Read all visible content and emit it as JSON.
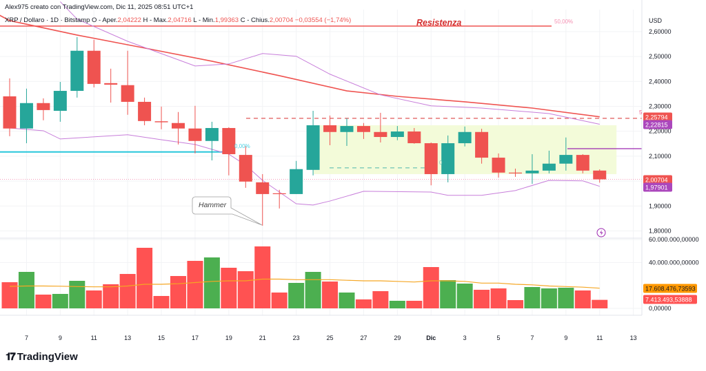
{
  "header": {
    "author_line": "Alex975 creato con TradingView.com, Dic 11, 2025 08:51 UTC+1",
    "symbol": "XRP / Dollaro · 1D · Bitstamp",
    "open_label": "O - Aper.",
    "open": "2,04222",
    "high_label": "H - Max.",
    "high": "2,04716",
    "low_label": "L - Min.",
    "low": "1,99363",
    "close_label": "C - Chius.",
    "close": "2,00704",
    "change": "−0,03554 (−1,74%)"
  },
  "logo": {
    "text": "TradingView",
    "mark": "TV"
  },
  "colors": {
    "up": "#26a69a",
    "down": "#ef5350",
    "vol_up": "#4caf50",
    "vol_down": "#ff5252",
    "ma_red": "#ef5350",
    "bollinger": "#c77dda",
    "vol_ma": "#f5a623",
    "teal": "#26c6da",
    "zone": "#f3fbd9",
    "purple_line": "#9c27b0"
  },
  "chart_data": {
    "type": "candlestick",
    "title": "",
    "currency": "USD",
    "ylim": [
      1.771,
      2.688
    ],
    "y_ticks": [
      "2,60000",
      "2,50000",
      "2,40000",
      "2,30000",
      "2,20000",
      "2,10000",
      "1,90000",
      "1,80000"
    ],
    "y_tick_values": [
      2.6,
      2.5,
      2.4,
      2.3,
      2.2,
      2.1,
      1.9,
      1.8
    ],
    "x_ticks": [
      {
        "label": "7",
        "date": "2025-11-07"
      },
      {
        "label": "9",
        "date": "2025-11-09"
      },
      {
        "label": "11",
        "date": "2025-11-11"
      },
      {
        "label": "13",
        "date": "2025-11-13"
      },
      {
        "label": "15",
        "date": "2025-11-15"
      },
      {
        "label": "17",
        "date": "2025-11-17"
      },
      {
        "label": "19",
        "date": "2025-11-19"
      },
      {
        "label": "21",
        "date": "2025-11-21"
      },
      {
        "label": "23",
        "date": "2025-11-23"
      },
      {
        "label": "25",
        "date": "2025-11-25"
      },
      {
        "label": "27",
        "date": "2025-11-27"
      },
      {
        "label": "29",
        "date": "2025-11-29"
      },
      {
        "label": "Dic",
        "date": "2025-12-01"
      },
      {
        "label": "3",
        "date": "2025-12-03"
      },
      {
        "label": "5",
        "date": "2025-12-05"
      },
      {
        "label": "7",
        "date": "2025-12-07"
      },
      {
        "label": "9",
        "date": "2025-12-09"
      },
      {
        "label": "11",
        "date": "2025-12-11"
      },
      {
        "label": "13",
        "date": "2025-12-13"
      }
    ],
    "candles": [
      {
        "date": "2025-11-06",
        "o": 2.34,
        "h": 2.412,
        "l": 2.18,
        "c": 2.211,
        "v": 22.8
      },
      {
        "date": "2025-11-07",
        "o": 2.211,
        "h": 2.371,
        "l": 2.152,
        "c": 2.313,
        "v": 31.8
      },
      {
        "date": "2025-11-08",
        "o": 2.313,
        "h": 2.332,
        "l": 2.244,
        "c": 2.285,
        "v": 12.0
      },
      {
        "date": "2025-11-09",
        "o": 2.282,
        "h": 2.398,
        "l": 2.238,
        "c": 2.362,
        "v": 12.6
      },
      {
        "date": "2025-11-10",
        "o": 2.362,
        "h": 2.578,
        "l": 2.335,
        "c": 2.523,
        "v": 24.0
      },
      {
        "date": "2025-11-11",
        "o": 2.523,
        "h": 2.567,
        "l": 2.376,
        "c": 2.39,
        "v": 15.6
      },
      {
        "date": "2025-11-12",
        "o": 2.393,
        "h": 2.451,
        "l": 2.315,
        "c": 2.387,
        "v": 21.0
      },
      {
        "date": "2025-11-13",
        "o": 2.385,
        "h": 2.523,
        "l": 2.266,
        "c": 2.318,
        "v": 30.0
      },
      {
        "date": "2025-11-14",
        "o": 2.318,
        "h": 2.335,
        "l": 2.224,
        "c": 2.241,
        "v": 52.8
      },
      {
        "date": "2025-11-15",
        "o": 2.24,
        "h": 2.299,
        "l": 2.208,
        "c": 2.236,
        "v": 10.8
      },
      {
        "date": "2025-11-16",
        "o": 2.233,
        "h": 2.277,
        "l": 2.147,
        "c": 2.211,
        "v": 28.2
      },
      {
        "date": "2025-11-17",
        "o": 2.211,
        "h": 2.302,
        "l": 2.111,
        "c": 2.161,
        "v": 41.4
      },
      {
        "date": "2025-11-18",
        "o": 2.161,
        "h": 2.238,
        "l": 2.083,
        "c": 2.213,
        "v": 44.4
      },
      {
        "date": "2025-11-19",
        "o": 2.213,
        "h": 2.216,
        "l": 2.023,
        "c": 2.108,
        "v": 35.4
      },
      {
        "date": "2025-11-20",
        "o": 2.105,
        "h": 2.141,
        "l": 1.973,
        "c": 1.998,
        "v": 32.4
      },
      {
        "date": "2025-11-21",
        "o": 1.995,
        "h": 2.028,
        "l": 1.821,
        "c": 1.948,
        "v": 54.0
      },
      {
        "date": "2025-11-22",
        "o": 1.951,
        "h": 1.965,
        "l": 1.89,
        "c": 1.948,
        "v": 13.8
      },
      {
        "date": "2025-11-23",
        "o": 1.948,
        "h": 2.081,
        "l": 1.948,
        "c": 2.048,
        "v": 22.2
      },
      {
        "date": "2025-11-24",
        "o": 2.045,
        "h": 2.282,
        "l": 2.023,
        "c": 2.224,
        "v": 31.8
      },
      {
        "date": "2025-11-25",
        "o": 2.224,
        "h": 2.263,
        "l": 2.144,
        "c": 2.197,
        "v": 23.4
      },
      {
        "date": "2025-11-26",
        "o": 2.197,
        "h": 2.252,
        "l": 2.141,
        "c": 2.221,
        "v": 13.8
      },
      {
        "date": "2025-11-27",
        "o": 2.221,
        "h": 2.233,
        "l": 2.169,
        "c": 2.197,
        "v": 7.8
      },
      {
        "date": "2025-11-28",
        "o": 2.197,
        "h": 2.274,
        "l": 2.155,
        "c": 2.177,
        "v": 15.0
      },
      {
        "date": "2025-11-29",
        "o": 2.177,
        "h": 2.221,
        "l": 2.164,
        "c": 2.199,
        "v": 6.6
      },
      {
        "date": "2025-11-30",
        "o": 2.199,
        "h": 2.213,
        "l": 2.15,
        "c": 2.152,
        "v": 6.6
      },
      {
        "date": "2025-12-01",
        "o": 2.152,
        "h": 2.155,
        "l": 1.983,
        "c": 2.028,
        "v": 36.0
      },
      {
        "date": "2025-12-02",
        "o": 2.028,
        "h": 2.183,
        "l": 1.995,
        "c": 2.152,
        "v": 24.6
      },
      {
        "date": "2025-12-03",
        "o": 2.152,
        "h": 2.219,
        "l": 2.139,
        "c": 2.197,
        "v": 21.6
      },
      {
        "date": "2025-12-04",
        "o": 2.197,
        "h": 2.21,
        "l": 2.07,
        "c": 2.094,
        "v": 16.2
      },
      {
        "date": "2025-12-05",
        "o": 2.094,
        "h": 2.111,
        "l": 2.014,
        "c": 2.034,
        "v": 17.4
      },
      {
        "date": "2025-12-06",
        "o": 2.034,
        "h": 2.05,
        "l": 2.017,
        "c": 2.031,
        "v": 7.2
      },
      {
        "date": "2025-12-07",
        "o": 2.031,
        "h": 2.108,
        "l": 1.989,
        "c": 2.042,
        "v": 18.6
      },
      {
        "date": "2025-12-08",
        "o": 2.042,
        "h": 2.122,
        "l": 2.031,
        "c": 2.07,
        "v": 17.4
      },
      {
        "date": "2025-12-09",
        "o": 2.07,
        "h": 2.175,
        "l": 2.042,
        "c": 2.105,
        "v": 18.0
      },
      {
        "date": "2025-12-10",
        "o": 2.105,
        "h": 2.108,
        "l": 2.031,
        "c": 2.042,
        "v": 15.6
      },
      {
        "date": "2025-12-11",
        "o": 2.04222,
        "h": 2.04716,
        "l": 1.99363,
        "c": 2.00704,
        "v": 7.413
      }
    ],
    "volume_unit": "billions",
    "volume_ylim": [
      -6,
      61.2
    ],
    "volume_ticks": [
      "60.000.000,00000",
      "40.000.000,00000",
      "0,00000"
    ],
    "volume_tick_values": [
      60,
      40,
      0
    ],
    "volume_ma": [
      19.2,
      19.5,
      19.5,
      19.3,
      19.0,
      18.8,
      18.8,
      19.5,
      21.0,
      21.0,
      21.5,
      22.5,
      23.5,
      24.0,
      24.0,
      25.5,
      25.5,
      25.0,
      25.0,
      25.0,
      24.5,
      24.0,
      24.0,
      23.5,
      23.0,
      24.0,
      24.0,
      23.5,
      22.0,
      22.0,
      21.0,
      20.5,
      19.5,
      19.0,
      18.5,
      17.6
    ],
    "ma_red": [
      [
        "2025-11-06",
        2.644
      ],
      [
        "2025-11-10",
        2.586
      ],
      [
        "2025-11-14",
        2.534
      ],
      [
        "2025-11-18",
        2.481
      ],
      [
        "2025-11-22",
        2.423
      ],
      [
        "2025-11-26",
        2.362
      ],
      [
        "2025-11-29",
        2.34
      ],
      [
        "2025-12-03",
        2.318
      ],
      [
        "2025-12-07",
        2.293
      ],
      [
        "2025-12-11",
        2.258
      ]
    ],
    "bollinger_upper": [
      [
        "2025-11-10",
        2.65
      ],
      [
        "2025-11-13",
        2.561
      ],
      [
        "2025-11-17",
        2.462
      ],
      [
        "2025-11-19",
        2.47
      ],
      [
        "2025-11-21",
        2.512
      ],
      [
        "2025-11-23",
        2.501
      ],
      [
        "2025-11-25",
        2.429
      ],
      [
        "2025-11-28",
        2.346
      ],
      [
        "2025-12-01",
        2.302
      ],
      [
        "2025-12-04",
        2.293
      ],
      [
        "2025-12-08",
        2.271
      ],
      [
        "2025-12-11",
        2.228
      ]
    ],
    "bollinger_lower": [
      [
        "2025-11-06",
        2.213
      ],
      [
        "2025-11-08",
        2.202
      ],
      [
        "2025-11-09",
        2.169
      ],
      [
        "2025-11-13",
        2.186
      ],
      [
        "2025-11-15",
        2.166
      ],
      [
        "2025-11-17",
        2.147
      ],
      [
        "2025-11-19",
        2.108
      ],
      [
        "2025-11-20",
        2.064
      ],
      [
        "2025-11-21",
        2.003
      ],
      [
        "2025-11-23",
        1.909
      ],
      [
        "2025-11-24",
        1.904
      ],
      [
        "2025-11-25",
        1.92
      ],
      [
        "2025-11-27",
        1.959
      ],
      [
        "2025-12-01",
        1.956
      ],
      [
        "2025-12-02",
        1.943
      ],
      [
        "2025-12-04",
        1.943
      ],
      [
        "2025-12-06",
        1.962
      ],
      [
        "2025-12-08",
        2.003
      ],
      [
        "2025-12-10",
        2.001
      ],
      [
        "2025-12-11",
        1.979
      ]
    ],
    "price_labels": {
      "ma_red": "2,25794",
      "bollinger_upper": "2,22815",
      "last_close": "2,00704",
      "bollinger_lower": "1,97901",
      "vol_ma": "17.608.476,73593",
      "vol_last": "7.413.493,53888"
    },
    "annotations": {
      "resistance_text": "Resistenza",
      "resistance_price": 2.622,
      "fib_50_label": "50,00%",
      "fib_0_label": "0,00%",
      "fib_0_price": 2.117,
      "fib_0_label_2": "0",
      "dashed_level_price": 2.252,
      "dashed_level_label": "5",
      "zone_top": 2.224,
      "zone_bottom": 2.028,
      "zone_start": "2025-11-24",
      "zone_end": "2025-12-12",
      "teal_dashed_price": 2.053,
      "purple_level_price": 2.13,
      "hammer_label": "Hammer",
      "hammer_date": "2025-11-21"
    }
  }
}
